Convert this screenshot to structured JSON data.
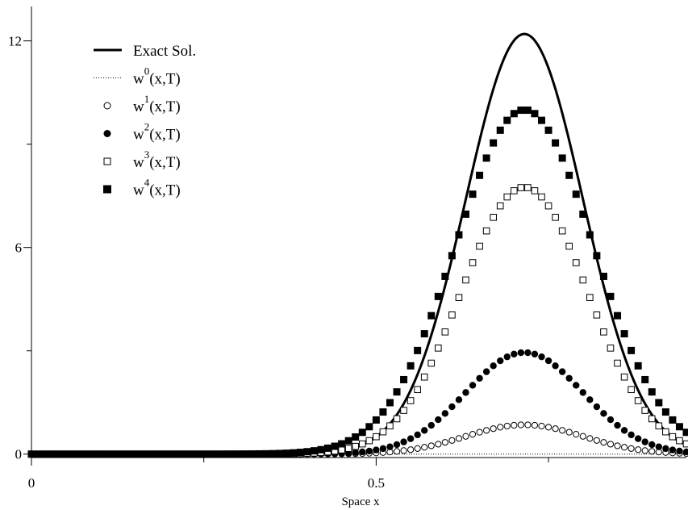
{
  "chart_data": {
    "type": "line",
    "xlabel": "Space x",
    "ylabel": "",
    "xlim": [
      0,
      0.95
    ],
    "ylim": [
      -0.1,
      13
    ],
    "xticks": [
      0,
      0.5
    ],
    "xtick_labels": [
      "0",
      "0.5"
    ],
    "yticks": [
      0,
      6,
      12
    ],
    "ytick_labels": [
      "0",
      "6",
      "12"
    ],
    "grid": false,
    "legend_position": "top-left",
    "legend": [
      {
        "label": "Exact Sol.",
        "base": "Exact Sol.",
        "sup": "",
        "tail": "",
        "marker": "solid-line"
      },
      {
        "label": "w0(x,T)",
        "base": "w",
        "sup": "0",
        "tail": "(x,T)",
        "marker": "dotted-line"
      },
      {
        "label": "w1(x,T)",
        "base": "w",
        "sup": "1",
        "tail": "(x,T)",
        "marker": "open-circle"
      },
      {
        "label": "w2(x,T)",
        "base": "w",
        "sup": "2",
        "tail": "(x,T)",
        "marker": "filled-circle"
      },
      {
        "label": "w3(x,T)",
        "base": "w",
        "sup": "3",
        "tail": "(x,T)",
        "marker": "open-square"
      },
      {
        "label": "w4(x,T)",
        "base": "w",
        "sup": "4",
        "tail": "(x,T)",
        "marker": "filled-square"
      }
    ],
    "series": [
      {
        "name": "Exact Sol.",
        "kind": "gaussian",
        "amplitude": 12.2,
        "center": 0.715,
        "sigma": 0.085,
        "baseline": 0,
        "marker": "solid-line"
      },
      {
        "name": "w0(x,T)",
        "kind": "gaussian",
        "amplitude": 0.0,
        "center": 0.715,
        "sigma": 0.085,
        "baseline": 0,
        "marker": "dotted-line"
      },
      {
        "name": "w1(x,T)",
        "kind": "gaussian",
        "amplitude": 0.85,
        "center": 0.715,
        "sigma": 0.085,
        "baseline": 0,
        "marker": "open-circle"
      },
      {
        "name": "w2(x,T)",
        "kind": "gaussian",
        "amplitude": 2.95,
        "center": 0.715,
        "sigma": 0.085,
        "baseline": 0,
        "marker": "filled-circle"
      },
      {
        "name": "w3(x,T)",
        "kind": "gaussian",
        "amplitude": 7.75,
        "center": 0.715,
        "sigma": 0.092,
        "baseline": 0,
        "marker": "open-square"
      },
      {
        "name": "w4(x,T)",
        "kind": "gaussian",
        "amplitude": 10.0,
        "center": 0.715,
        "sigma": 0.1,
        "baseline": 0,
        "marker": "filled-square"
      }
    ],
    "marker_x_start": 0,
    "marker_x_end": 0.95,
    "marker_x_step": 0.01
  }
}
